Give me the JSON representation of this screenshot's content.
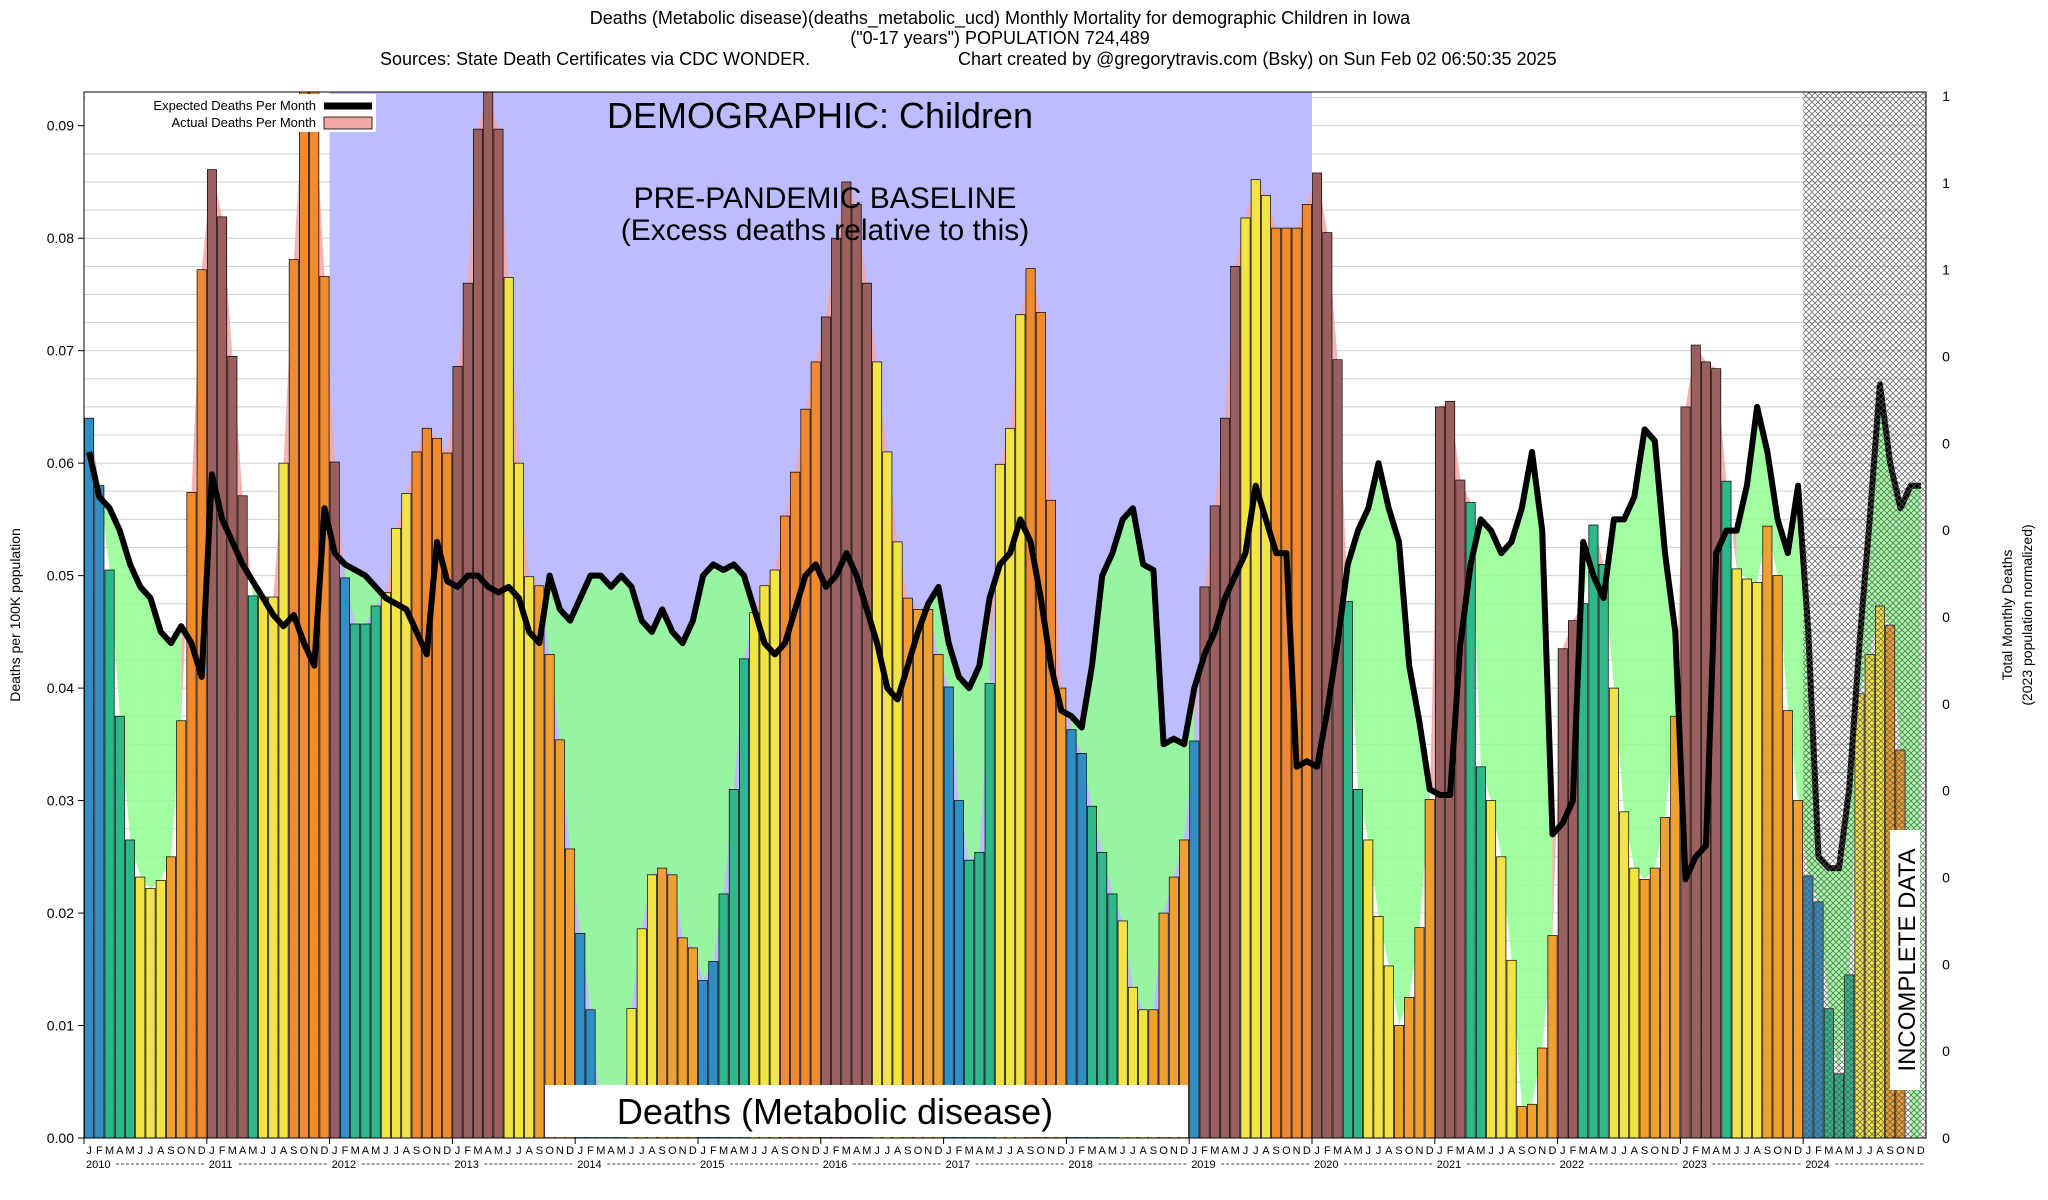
{
  "header": {
    "line1": "Deaths (Metabolic disease)(deaths_metabolic_ucd) Monthly Mortality for demographic Children in Iowa",
    "line2": "(\"0-17 years\") POPULATION 724,489",
    "line3_left": "Sources: State Death Certificates via CDC WONDER.",
    "line3_right": "Chart created by @gregorytravis.com (Bsky) on Sun Feb 02 06:50:35 2025"
  },
  "annotations": {
    "demographic": "DEMOGRAPHIC: Children",
    "baseline_1": "PRE-PANDEMIC BASELINE",
    "baseline_2": "(Excess deaths relative to this)",
    "cause": "Deaths (Metabolic disease)",
    "incomplete": "INCOMPLETE DATA"
  },
  "legend": {
    "expected": "Expected Deaths Per Month",
    "actual": "Actual Deaths Per Month"
  },
  "colors": {
    "baseline_region": "#bcbcff",
    "incomplete_hatch": "#555555",
    "expected_line": "#000000",
    "actual_fill": "#f4a6a6",
    "bar_winter": "#2f8ec3",
    "bar_spring": "#2db88a",
    "bar_summer": "#f2e447",
    "bar_autumn": "#f0a030",
    "excess_fill": "#9a6060",
    "deficit_fill": "#90ff90"
  },
  "chart_data": {
    "type": "bar",
    "title": "Deaths (Metabolic disease)(deaths_metabolic_ucd) Monthly Mortality for demographic Children in Iowa",
    "ylabel": "Deaths per 100K population",
    "y2label_1": "Total Monthly Deaths",
    "y2label_2": "(2023 population normalized)",
    "ylim": [
      0,
      0.093
    ],
    "yticks": [
      "0.00",
      "0.01",
      "0.02",
      "0.03",
      "0.04",
      "0.05",
      "0.06",
      "0.07",
      "0.08",
      "0.09"
    ],
    "y2ticks": [
      "0",
      "0",
      "0",
      "0",
      "0",
      "0",
      "0",
      "0",
      "0",
      "0",
      "1",
      "1",
      "1"
    ],
    "month_letters": [
      "J",
      "F",
      "M",
      "A",
      "M",
      "J",
      "J",
      "A",
      "S",
      "O",
      "N",
      "D"
    ],
    "years": [
      "2010",
      "2011",
      "2012",
      "2013",
      "2014",
      "2015",
      "2016",
      "2017",
      "2018",
      "2019",
      "2020",
      "2021",
      "2022",
      "2023",
      "2024"
    ],
    "baseline_period": [
      "2012-01",
      "2019-12"
    ],
    "incomplete_period": [
      "2024-01",
      "2024-12"
    ],
    "grid": true,
    "legend_position": "top-left",
    "series": [
      {
        "name": "Actual Deaths Per Month",
        "start": "2010-01",
        "values": [
          0.064,
          0.058,
          0.0505,
          0.0375,
          0.0265,
          0.0232,
          0.0222,
          0.0229,
          0.025,
          0.0371,
          0.0574,
          0.0772,
          0.0861,
          0.0819,
          0.0695,
          0.0571,
          0.0482,
          0.0481,
          0.0481,
          0.06,
          0.0781,
          0.093,
          0.093,
          0.0766,
          0.0601,
          0.0498,
          0.0457,
          0.0457,
          0.0473,
          0.0485,
          0.0542,
          0.0573,
          0.061,
          0.0631,
          0.0622,
          0.0609,
          0.0686,
          0.076,
          0.0897,
          0.093,
          0.0897,
          0.0765,
          0.06,
          0.0499,
          0.0491,
          0.043,
          0.0354,
          0.0257,
          0.0182,
          0.0114,
          0.0022,
          0.0008,
          0.0004,
          0.0115,
          0.0186,
          0.0234,
          0.024,
          0.0234,
          0.0178,
          0.0169,
          0.014,
          0.0157,
          0.0217,
          0.031,
          0.0426,
          0.0467,
          0.0491,
          0.0505,
          0.0553,
          0.0592,
          0.0648,
          0.069,
          0.073,
          0.08,
          0.085,
          0.083,
          0.076,
          0.069,
          0.061,
          0.053,
          0.048,
          0.047,
          0.047,
          0.043,
          0.0401,
          0.03,
          0.0247,
          0.0254,
          0.0404,
          0.0599,
          0.0631,
          0.0732,
          0.0773,
          0.0734,
          0.0567,
          0.04,
          0.0363,
          0.0342,
          0.0295,
          0.0254,
          0.0217,
          0.0193,
          0.0134,
          0.0114,
          0.0114,
          0.02,
          0.0232,
          0.0265,
          0.0353,
          0.049,
          0.0562,
          0.064,
          0.0775,
          0.0818,
          0.0852,
          0.0838,
          0.0809,
          0.0809,
          0.0809,
          0.083,
          0.0858,
          0.0805,
          0.0692,
          0.0477,
          0.031,
          0.0265,
          0.0197,
          0.0153,
          0.01,
          0.0125,
          0.0187,
          0.0301,
          0.065,
          0.0655,
          0.0585,
          0.0565,
          0.033,
          0.03,
          0.025,
          0.0158,
          0.0028,
          0.003,
          0.008,
          0.018,
          0.0435,
          0.046,
          0.0475,
          0.0545,
          0.051,
          0.04,
          0.029,
          0.024,
          0.023,
          0.024,
          0.0285,
          0.0375,
          0.065,
          0.0705,
          0.069,
          0.0684,
          0.0584,
          0.0506,
          0.0497,
          0.0494,
          0.0544,
          0.05,
          0.038,
          0.03,
          0.0233,
          0.021,
          0.0115,
          0.0057,
          0.0145,
          0.0395,
          0.043,
          0.0473,
          0.0456,
          0.0345,
          0.0,
          0.0
        ]
      },
      {
        "name": "Expected Deaths Per Month",
        "start": "2010-01",
        "values": [
          0.061,
          0.057,
          0.056,
          0.054,
          0.051,
          0.049,
          0.048,
          0.045,
          0.044,
          0.0455,
          0.044,
          0.041,
          0.059,
          0.055,
          0.053,
          0.051,
          0.0495,
          0.048,
          0.0465,
          0.0455,
          0.0465,
          0.044,
          0.042,
          0.056,
          0.052,
          0.051,
          0.0505,
          0.05,
          0.049,
          0.048,
          0.0475,
          0.047,
          0.045,
          0.043,
          0.053,
          0.0495,
          0.049,
          0.05,
          0.05,
          0.049,
          0.0485,
          0.049,
          0.048,
          0.045,
          0.044,
          0.05,
          0.047,
          0.046,
          0.048,
          0.05,
          0.05,
          0.049,
          0.05,
          0.049,
          0.046,
          0.045,
          0.047,
          0.045,
          0.044,
          0.046,
          0.05,
          0.051,
          0.0505,
          0.051,
          0.05,
          0.047,
          0.044,
          0.043,
          0.044,
          0.047,
          0.05,
          0.051,
          0.049,
          0.05,
          0.052,
          0.05,
          0.047,
          0.044,
          0.04,
          0.039,
          0.042,
          0.045,
          0.0475,
          0.049,
          0.044,
          0.041,
          0.04,
          0.042,
          0.048,
          0.051,
          0.052,
          0.055,
          0.053,
          0.048,
          0.042,
          0.038,
          0.0375,
          0.0365,
          0.042,
          0.05,
          0.052,
          0.055,
          0.056,
          0.051,
          0.0505,
          0.035,
          0.0355,
          0.035,
          0.04,
          0.043,
          0.045,
          0.048,
          0.05,
          0.052,
          0.058,
          0.055,
          0.052,
          0.052,
          0.033,
          0.0335,
          0.033,
          0.038,
          0.044,
          0.051,
          0.054,
          0.056,
          0.06,
          0.056,
          0.053,
          0.042,
          0.037,
          0.031,
          0.0305,
          0.0305,
          0.044,
          0.051,
          0.055,
          0.054,
          0.052,
          0.053,
          0.056,
          0.061,
          0.054,
          0.027,
          0.028,
          0.03,
          0.053,
          0.05,
          0.048,
          0.055,
          0.055,
          0.057,
          0.063,
          0.062,
          0.052,
          0.045,
          0.023,
          0.025,
          0.026,
          0.052,
          0.054,
          0.054,
          0.058,
          0.065,
          0.061,
          0.055,
          0.052,
          0.058,
          0.045,
          0.025,
          0.024,
          0.024,
          0.031,
          0.044,
          0.055,
          0.067,
          0.06,
          0.056,
          0.058,
          0.058
        ]
      }
    ]
  }
}
